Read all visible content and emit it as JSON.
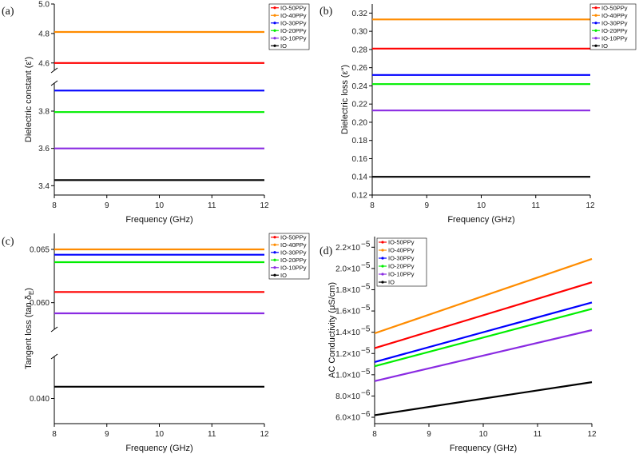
{
  "series_names": [
    "IO-50PPy",
    "IO-40PPy",
    "IO-30PPy",
    "IO-20PPy",
    "IO-10PPy",
    "IO"
  ],
  "series_colors": [
    "#ff0000",
    "#ff8c00",
    "#0000ff",
    "#00ee00",
    "#8a2be2",
    "#000000"
  ],
  "chart_data": [
    {
      "panel": "(a)",
      "type": "line",
      "xlabel": "Frequency (GHz)",
      "ylabel": "Dielectric constant (ε')",
      "xlim": [
        8,
        12
      ],
      "xticks": [
        "8",
        "9",
        "10",
        "11",
        "12"
      ],
      "axis_break": true,
      "ylim_upper": [
        4.55,
        5.0
      ],
      "yticks_upper": [
        "4.6",
        "4.8",
        "5.0"
      ],
      "ylim_lower": [
        3.35,
        3.95
      ],
      "yticks_lower": [
        "3.4",
        "3.6",
        "3.8"
      ],
      "legend": "top-right outside",
      "series": [
        {
          "name": "IO-50PPy",
          "x": [
            8,
            12
          ],
          "y": [
            4.6,
            4.6
          ]
        },
        {
          "name": "IO-40PPy",
          "x": [
            8,
            12
          ],
          "y": [
            4.81,
            4.81
          ]
        },
        {
          "name": "IO-30PPy",
          "x": [
            8,
            12
          ],
          "y": [
            3.91,
            3.91
          ]
        },
        {
          "name": "IO-20PPy",
          "x": [
            8,
            12
          ],
          "y": [
            3.795,
            3.795
          ]
        },
        {
          "name": "IO-10PPy",
          "x": [
            8,
            12
          ],
          "y": [
            3.6,
            3.6
          ]
        },
        {
          "name": "IO",
          "x": [
            8,
            12
          ],
          "y": [
            3.43,
            3.43
          ]
        }
      ]
    },
    {
      "panel": "(b)",
      "type": "line",
      "xlabel": "Frequency (GHz)",
      "ylabel": "Dielectric loss (ε\")",
      "xlim": [
        8,
        12
      ],
      "xticks": [
        "8",
        "9",
        "10",
        "11",
        "12"
      ],
      "axis_break": false,
      "ylim": [
        0.12,
        0.33
      ],
      "yticks": [
        "0.12",
        "0.14",
        "0.16",
        "0.18",
        "0.20",
        "0.22",
        "0.24",
        "0.26",
        "0.28",
        "0.30",
        "0.32"
      ],
      "legend": "top-right outside",
      "series": [
        {
          "name": "IO-50PPy",
          "x": [
            8,
            12
          ],
          "y": [
            0.281,
            0.281
          ]
        },
        {
          "name": "IO-40PPy",
          "x": [
            8,
            12
          ],
          "y": [
            0.313,
            0.313
          ]
        },
        {
          "name": "IO-30PPy",
          "x": [
            8,
            12
          ],
          "y": [
            0.252,
            0.252
          ]
        },
        {
          "name": "IO-20PPy",
          "x": [
            8,
            12
          ],
          "y": [
            0.242,
            0.242
          ]
        },
        {
          "name": "IO-10PPy",
          "x": [
            8,
            12
          ],
          "y": [
            0.213,
            0.213
          ]
        },
        {
          "name": "IO",
          "x": [
            8,
            12
          ],
          "y": [
            0.14,
            0.14
          ]
        }
      ]
    },
    {
      "panel": "(c)",
      "type": "line",
      "xlabel": "Frequency (GHz)",
      "ylabel": "Tangent loss (tan δE)",
      "ylabel_main": "Tangent loss (tan δ",
      "ylabel_sub": "E",
      "ylabel_end": ")",
      "xlim": [
        8,
        12
      ],
      "xticks": [
        "8",
        "9",
        "10",
        "11",
        "12"
      ],
      "axis_break": true,
      "ylim_upper": [
        0.0575,
        0.0665
      ],
      "yticks_upper": [
        "0.060",
        "0.065"
      ],
      "ylim_lower": [
        0.0385,
        0.0425
      ],
      "yticks_lower": [
        "0.040"
      ],
      "legend": "top-right outside",
      "series": [
        {
          "name": "IO-50PPy",
          "x": [
            8,
            12
          ],
          "y": [
            0.061,
            0.061
          ]
        },
        {
          "name": "IO-40PPy",
          "x": [
            8,
            12
          ],
          "y": [
            0.065,
            0.065
          ]
        },
        {
          "name": "IO-30PPy",
          "x": [
            8,
            12
          ],
          "y": [
            0.0645,
            0.0645
          ]
        },
        {
          "name": "IO-20PPy",
          "x": [
            8,
            12
          ],
          "y": [
            0.0638,
            0.0638
          ]
        },
        {
          "name": "IO-10PPy",
          "x": [
            8,
            12
          ],
          "y": [
            0.059,
            0.059
          ]
        },
        {
          "name": "IO",
          "x": [
            8,
            12
          ],
          "y": [
            0.0407,
            0.0407
          ]
        }
      ]
    },
    {
      "panel": "(d)",
      "type": "line",
      "xlabel": "Frequency (GHz)",
      "ylabel": "AC Conductivity (μS/cm)",
      "xlim": [
        8,
        12
      ],
      "xticks": [
        "8",
        "9",
        "10",
        "11",
        "12"
      ],
      "axis_break": false,
      "ylim": [
        5.4e-06,
        2.3e-05
      ],
      "yticks": [
        6e-06,
        8e-06,
        1e-05,
        1.2e-05,
        1.4e-05,
        1.6e-05,
        1.8e-05,
        2e-05,
        2.2e-05
      ],
      "ytick_labels": [
        {
          "mant": "6.0×10",
          "exp": "−6"
        },
        {
          "mant": "8.0×10",
          "exp": "−6"
        },
        {
          "mant": "1.0×10",
          "exp": "−5"
        },
        {
          "mant": "1.2×10",
          "exp": "−5"
        },
        {
          "mant": "1.4×10",
          "exp": "−5"
        },
        {
          "mant": "1.6×10",
          "exp": "−5"
        },
        {
          "mant": "1.8×10",
          "exp": "−5"
        },
        {
          "mant": "2.0×10",
          "exp": "−5"
        },
        {
          "mant": "2.2×10",
          "exp": "−5"
        }
      ],
      "legend": "top-left inside",
      "series": [
        {
          "name": "IO-50PPy",
          "x": [
            8,
            12
          ],
          "y": [
            1.25e-05,
            1.87e-05
          ]
        },
        {
          "name": "IO-40PPy",
          "x": [
            8,
            12
          ],
          "y": [
            1.39e-05,
            2.09e-05
          ]
        },
        {
          "name": "IO-30PPy",
          "x": [
            8,
            12
          ],
          "y": [
            1.12e-05,
            1.68e-05
          ]
        },
        {
          "name": "IO-20PPy",
          "x": [
            8,
            12
          ],
          "y": [
            1.08e-05,
            1.62e-05
          ]
        },
        {
          "name": "IO-10PPy",
          "x": [
            8,
            12
          ],
          "y": [
            9.4e-06,
            1.42e-05
          ]
        },
        {
          "name": "IO",
          "x": [
            8,
            12
          ],
          "y": [
            6.2e-06,
            9.3e-06
          ]
        }
      ]
    }
  ]
}
